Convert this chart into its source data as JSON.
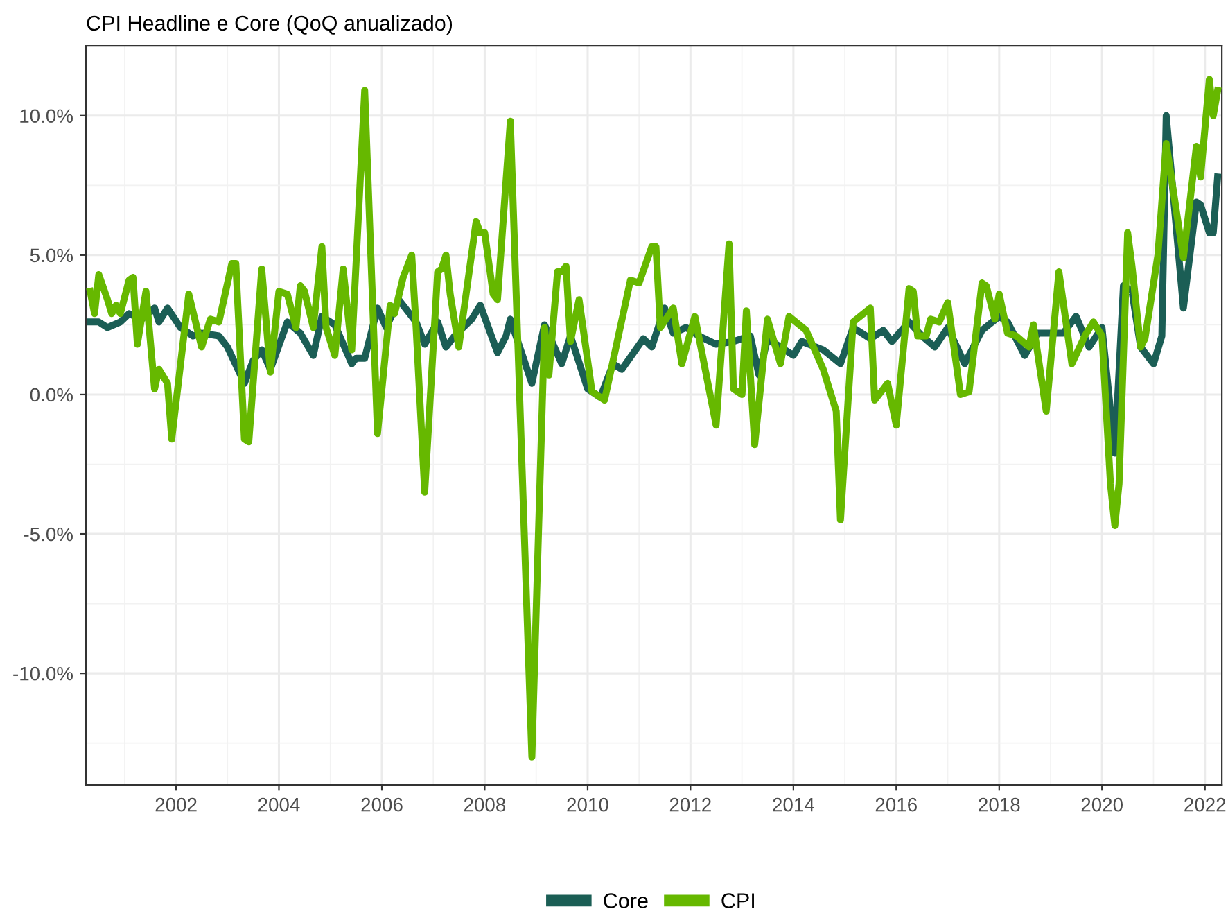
{
  "chart_data": {
    "type": "line",
    "title": "CPI Headline e Core (QoQ anualizado)",
    "legend": "bottom",
    "grid": true,
    "line_style": "solid",
    "xlim": [
      "2000-04",
      "2022-05"
    ],
    "xticks": [
      "2002",
      "2004",
      "2006",
      "2008",
      "2010",
      "2012",
      "2014",
      "2016",
      "2018",
      "2020",
      "2022"
    ],
    "ylim": [
      -14,
      12.5
    ],
    "yticks": [
      {
        "value": -10,
        "label": "-10.0%"
      },
      {
        "value": -5,
        "label": "-5.0%"
      },
      {
        "value": 0,
        "label": "0.0%"
      },
      {
        "value": 5,
        "label": "5.0%"
      },
      {
        "value": 10,
        "label": "10.0%"
      }
    ],
    "series": [
      {
        "name": "Core",
        "color": "#1b5e55",
        "x": [
          "2000-05",
          "2000-07",
          "2000-09",
          "2000-12",
          "2001-02",
          "2001-05",
          "2001-08",
          "2001-09",
          "2001-11",
          "2002-02",
          "2002-05",
          "2002-07",
          "2002-11",
          "2003-01",
          "2003-05",
          "2003-07",
          "2003-09",
          "2003-11",
          "2004-03",
          "2004-06",
          "2004-09",
          "2004-11",
          "2005-02",
          "2005-06",
          "2005-07",
          "2005-09",
          "2005-12",
          "2006-02",
          "2006-05",
          "2006-09",
          "2006-11",
          "2007-02",
          "2007-04",
          "2007-06",
          "2007-10",
          "2007-12",
          "2008-04",
          "2008-06",
          "2008-07",
          "2008-12",
          "2009-03",
          "2009-07",
          "2009-09",
          "2010-01",
          "2010-04",
          "2010-07",
          "2010-09",
          "2011-02",
          "2011-04",
          "2011-07",
          "2011-09",
          "2011-12",
          "2012-03",
          "2012-07",
          "2012-11",
          "2013-03",
          "2013-05",
          "2013-07",
          "2013-10",
          "2014-01",
          "2014-03",
          "2014-08",
          "2014-12",
          "2015-03",
          "2015-07",
          "2015-10",
          "2015-12",
          "2016-04",
          "2016-07",
          "2016-10",
          "2017-01",
          "2017-05",
          "2017-09",
          "2018-01",
          "2018-03",
          "2018-07",
          "2018-10",
          "2019-02",
          "2019-04",
          "2019-07",
          "2019-10",
          "2020-01",
          "2020-04",
          "2020-06",
          "2020-08",
          "2020-10",
          "2021-01",
          "2021-03",
          "2021-04",
          "2021-08",
          "2021-11",
          "2021-12",
          "2022-02",
          "2022-03",
          "2022-04"
        ],
        "values": [
          2.6,
          2.6,
          2.4,
          2.6,
          2.9,
          2.7,
          3.1,
          2.6,
          3.1,
          2.4,
          2.1,
          2.2,
          2.1,
          1.7,
          0.4,
          1.2,
          1.6,
          0.9,
          2.6,
          2.2,
          1.4,
          2.8,
          2.5,
          1.1,
          1.3,
          1.3,
          3.1,
          2.4,
          3.4,
          2.6,
          1.8,
          2.6,
          1.7,
          2.1,
          2.7,
          3.2,
          1.5,
          2.1,
          2.7,
          0.4,
          2.5,
          1.1,
          2.1,
          0.2,
          -0.1,
          1.1,
          0.9,
          2.0,
          1.7,
          3.1,
          2.2,
          2.4,
          2.1,
          1.8,
          1.9,
          2.1,
          0.7,
          2.0,
          1.7,
          1.4,
          1.9,
          1.6,
          1.1,
          2.4,
          2.0,
          2.3,
          1.9,
          2.6,
          2.1,
          1.7,
          2.4,
          1.1,
          2.3,
          2.8,
          2.6,
          1.4,
          2.2,
          2.2,
          2.2,
          2.8,
          1.7,
          2.4,
          -2.1,
          3.9,
          3.7,
          1.7,
          1.1,
          2.1,
          10.0,
          3.1,
          6.9,
          6.8,
          5.8,
          5.8,
          7.8
        ]
      },
      {
        "name": "CPI",
        "color": "#66b800",
        "x": [
          "2000-05",
          "2000-06",
          "2000-07",
          "2000-09",
          "2000-10",
          "2000-11",
          "2000-12",
          "2001-02",
          "2001-03",
          "2001-04",
          "2001-06",
          "2001-08",
          "2001-09",
          "2001-11",
          "2001-12",
          "2002-04",
          "2002-07",
          "2002-09",
          "2002-11",
          "2003-02",
          "2003-03",
          "2003-05",
          "2003-06",
          "2003-09",
          "2003-11",
          "2004-01",
          "2004-03",
          "2004-05",
          "2004-06",
          "2004-07",
          "2004-09",
          "2004-11",
          "2004-12",
          "2005-02",
          "2005-04",
          "2005-06",
          "2005-09",
          "2005-12",
          "2006-03",
          "2006-04",
          "2006-06",
          "2006-08",
          "2006-09",
          "2006-11",
          "2007-02",
          "2007-03",
          "2007-04",
          "2007-05",
          "2007-07",
          "2007-11",
          "2007-12",
          "2008-01",
          "2008-03",
          "2008-04",
          "2008-07",
          "2008-12",
          "2009-03",
          "2009-04",
          "2009-06",
          "2009-07",
          "2009-08",
          "2009-09",
          "2009-11",
          "2010-02",
          "2010-05",
          "2010-11",
          "2011-01",
          "2011-04",
          "2011-05",
          "2011-06",
          "2011-09",
          "2011-11",
          "2012-02",
          "2012-07",
          "2012-10",
          "2012-11",
          "2013-01",
          "2013-02",
          "2013-04",
          "2013-07",
          "2013-10",
          "2013-12",
          "2014-04",
          "2014-08",
          "2014-11",
          "2014-12",
          "2015-03",
          "2015-07",
          "2015-08",
          "2015-11",
          "2016-01",
          "2016-04",
          "2016-05",
          "2016-06",
          "2016-08",
          "2016-09",
          "2016-11",
          "2017-01",
          "2017-04",
          "2017-06",
          "2017-09",
          "2017-10",
          "2017-12",
          "2018-01",
          "2018-03",
          "2018-05",
          "2018-08",
          "2018-09",
          "2018-12",
          "2019-03",
          "2019-06",
          "2019-09",
          "2019-11",
          "2020-01",
          "2020-03",
          "2020-04",
          "2020-05",
          "2020-07",
          "2020-08",
          "2020-10",
          "2020-11",
          "2021-02",
          "2021-04",
          "2021-08",
          "2021-11",
          "2021-12",
          "2022-02",
          "2022-03",
          "2022-04"
        ],
        "values": [
          3.7,
          2.9,
          4.3,
          3.4,
          2.9,
          3.2,
          2.9,
          4.1,
          4.2,
          1.8,
          3.7,
          0.2,
          0.9,
          0.4,
          -1.6,
          3.6,
          1.7,
          2.7,
          2.6,
          4.7,
          4.7,
          -1.6,
          -1.7,
          4.5,
          0.8,
          3.7,
          3.6,
          2.4,
          3.9,
          3.7,
          2.4,
          5.3,
          2.4,
          1.4,
          4.5,
          1.6,
          10.9,
          -1.4,
          3.2,
          2.9,
          4.2,
          5.0,
          2.4,
          -3.5,
          4.4,
          4.5,
          5.0,
          3.6,
          1.7,
          6.2,
          5.8,
          5.8,
          3.6,
          3.4,
          9.8,
          -13.0,
          2.4,
          0.7,
          4.4,
          4.4,
          4.6,
          1.9,
          3.4,
          0.1,
          -0.2,
          4.1,
          4.0,
          5.3,
          5.3,
          2.4,
          3.1,
          1.1,
          2.8,
          -1.1,
          5.4,
          0.2,
          0.0,
          3.0,
          -1.8,
          2.7,
          1.1,
          2.8,
          2.3,
          0.9,
          -0.6,
          -4.5,
          2.6,
          3.1,
          -0.2,
          0.4,
          -1.1,
          3.8,
          3.7,
          2.1,
          2.1,
          2.7,
          2.6,
          3.3,
          0.0,
          0.1,
          4.0,
          3.9,
          2.7,
          3.6,
          2.2,
          2.1,
          1.7,
          2.5,
          -0.6,
          4.4,
          1.1,
          2.1,
          2.6,
          2.1,
          -3.2,
          -4.7,
          -3.2,
          5.8,
          4.6,
          1.7,
          2.0,
          5.0,
          9.0,
          4.9,
          8.9,
          7.8,
          11.3,
          10.0,
          10.9
        ]
      }
    ]
  }
}
